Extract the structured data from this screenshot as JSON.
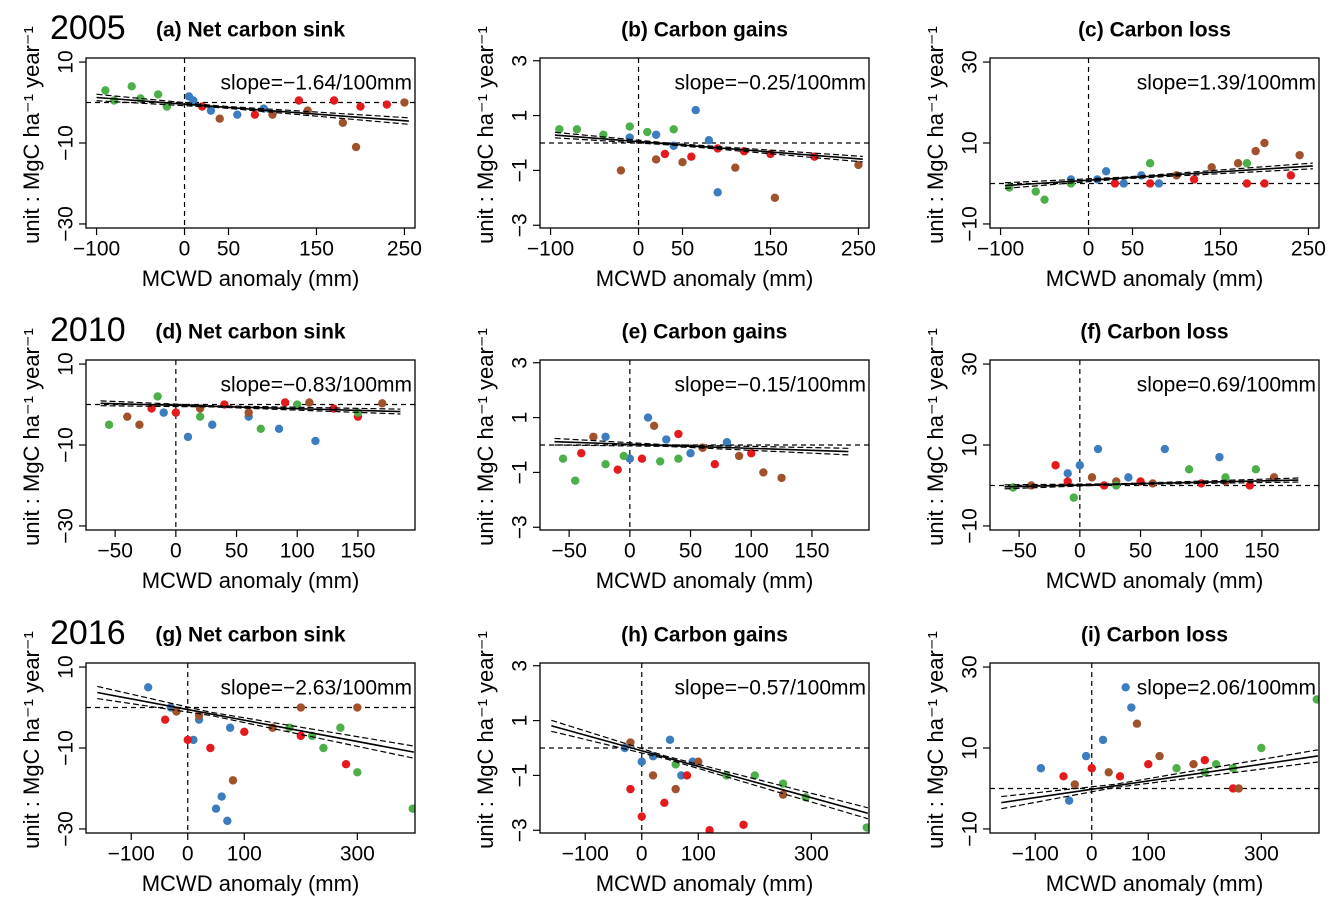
{
  "chart_data": [
    {
      "type": "scatter",
      "year": "2005",
      "title": "(a) Net carbon sink",
      "xlabel": "MCWD anomaly (mm)",
      "ylabel": "unit : MgC ha⁻¹ year⁻¹",
      "annotation": "slope=−1.64/100mm",
      "xlim": [
        -112,
        262
      ],
      "ylim": [
        -31,
        11
      ],
      "xticks": [
        {
          "value": -100,
          "label": "−100"
        },
        0,
        50,
        150,
        250
      ],
      "yticks": [
        {
          "value": -30,
          "label": "−30"
        },
        {
          "value": -10,
          "label": "−10"
        },
        10
      ],
      "series": [
        {
          "color": "#3b7dbf",
          "x": [
            -20,
            10,
            30,
            60,
            90,
            5
          ],
          "values": [
            -1,
            0.5,
            -2,
            -3,
            -1.5,
            1.5
          ]
        },
        {
          "color": "#e41a1c",
          "x": [
            20,
            80,
            130,
            170,
            200,
            230
          ],
          "values": [
            -1,
            -3,
            0.5,
            0.5,
            -1,
            -0.5
          ]
        },
        {
          "color": "#a0522d",
          "x": [
            40,
            100,
            140,
            180,
            195,
            250
          ],
          "values": [
            -4,
            -3,
            -2,
            -5,
            -11,
            0
          ]
        },
        {
          "color": "#4daf4a",
          "x": [
            -90,
            -60,
            -50,
            -30,
            -80,
            -20
          ],
          "values": [
            3,
            4,
            1,
            2,
            0.5,
            -1
          ]
        }
      ],
      "fit": {
        "x": [
          -100,
          40,
          255
        ],
        "y": [
          1.24,
          -1.06,
          -4.58
        ],
        "ci_lower": [
          0.44,
          -1.26,
          -5.38
        ],
        "ci_upper": [
          2.04,
          -0.86,
          -3.78
        ]
      }
    },
    {
      "type": "scatter",
      "title": "(b) Carbon gains",
      "xlabel": "MCWD anomaly (mm)",
      "ylabel": "unit : MgC ha⁻¹ year⁻¹",
      "annotation": "slope=−0.25/100mm",
      "xlim": [
        -112,
        262
      ],
      "ylim": [
        -3.1,
        3.1
      ],
      "xticks": [
        {
          "value": -100,
          "label": "−100"
        },
        0,
        50,
        150,
        250
      ],
      "yticks": [
        {
          "value": -3,
          "label": "−3"
        },
        {
          "value": -1,
          "label": "−1"
        },
        1,
        3
      ],
      "series": [
        {
          "color": "#3b7dbf",
          "x": [
            -10,
            20,
            40,
            65,
            90,
            80
          ],
          "values": [
            0.2,
            0.3,
            -0.1,
            1.2,
            -1.8,
            0.1
          ]
        },
        {
          "color": "#e41a1c",
          "x": [
            30,
            60,
            90,
            120,
            150,
            200
          ],
          "values": [
            -0.4,
            -0.5,
            -0.2,
            -0.3,
            -0.4,
            -0.5
          ]
        },
        {
          "color": "#a0522d",
          "x": [
            -20,
            20,
            50,
            110,
            155,
            250
          ],
          "values": [
            -1,
            -0.6,
            -0.7,
            -0.9,
            -2,
            -0.8
          ]
        },
        {
          "color": "#4daf4a",
          "x": [
            -90,
            -70,
            -40,
            -10,
            10,
            40
          ],
          "values": [
            0.5,
            0.5,
            0.3,
            0.6,
            0.4,
            0.5
          ]
        }
      ],
      "fit": {
        "x": [
          -95,
          40,
          255
        ],
        "y": [
          0.29,
          -0.05,
          -0.59
        ],
        "ci_lower": [
          0.19,
          -0.08,
          -0.69
        ],
        "ci_upper": [
          0.39,
          -0.02,
          -0.49
        ]
      }
    },
    {
      "type": "scatter",
      "title": "(c) Carbon loss",
      "xlabel": "MCWD anomaly (mm)",
      "ylabel": "unit : MgC ha⁻¹ year⁻¹",
      "annotation": "slope=1.39/100mm",
      "xlim": [
        -112,
        262
      ],
      "ylim": [
        -11,
        31
      ],
      "xticks": [
        {
          "value": -100,
          "label": "−100"
        },
        0,
        50,
        150,
        250
      ],
      "yticks": [
        {
          "value": -10,
          "label": "−10"
        },
        10,
        30
      ],
      "series": [
        {
          "color": "#3b7dbf",
          "x": [
            -20,
            20,
            40,
            60,
            80,
            10
          ],
          "values": [
            1,
            3,
            0,
            2,
            0,
            1
          ]
        },
        {
          "color": "#e41a1c",
          "x": [
            30,
            70,
            120,
            180,
            200,
            230
          ],
          "values": [
            0,
            0,
            1,
            0,
            0,
            2
          ]
        },
        {
          "color": "#a0522d",
          "x": [
            100,
            140,
            170,
            190,
            200,
            240
          ],
          "values": [
            2,
            4,
            5,
            8,
            10,
            7
          ]
        },
        {
          "color": "#4daf4a",
          "x": [
            -90,
            -60,
            -50,
            -20,
            70,
            180
          ],
          "values": [
            -1,
            -2,
            -4,
            0,
            5,
            5
          ]
        }
      ],
      "fit": {
        "x": [
          -95,
          40,
          255
        ],
        "y": [
          -0.52,
          1.36,
          4.34
        ],
        "ci_lower": [
          -1.22,
          1.16,
          3.64
        ],
        "ci_upper": [
          0.18,
          1.56,
          5.04
        ]
      }
    },
    {
      "type": "scatter",
      "year": "2010",
      "title": "(d) Net carbon sink",
      "xlabel": "MCWD anomaly (mm)",
      "ylabel": "unit : MgC ha⁻¹ year⁻¹",
      "annotation": "slope=−0.83/100mm",
      "xlim": [
        -74,
        197
      ],
      "ylim": [
        -31,
        11
      ],
      "xticks": [
        {
          "value": -50,
          "label": "−50"
        },
        0,
        50,
        100,
        150
      ],
      "yticks": [
        {
          "value": -30,
          "label": "−30"
        },
        {
          "value": -10,
          "label": "−10"
        },
        10
      ],
      "series": [
        {
          "color": "#3b7dbf",
          "x": [
            -10,
            10,
            30,
            60,
            85,
            115
          ],
          "values": [
            -2,
            -8,
            -5,
            -3,
            -6,
            -9
          ]
        },
        {
          "color": "#e41a1c",
          "x": [
            -20,
            0,
            40,
            90,
            130,
            150
          ],
          "values": [
            -1,
            -2,
            0,
            0.5,
            -1,
            -3
          ]
        },
        {
          "color": "#a0522d",
          "x": [
            -40,
            -30,
            20,
            60,
            110,
            170
          ],
          "values": [
            -3,
            -5,
            -1,
            -2,
            0.5,
            0.3
          ]
        },
        {
          "color": "#4daf4a",
          "x": [
            -55,
            -15,
            20,
            70,
            150,
            100
          ],
          "values": [
            -5,
            2,
            -3,
            -6,
            -2,
            0
          ]
        }
      ],
      "fit": {
        "x": [
          -62,
          30,
          185
        ],
        "y": [
          0.31,
          -0.45,
          -1.74
        ],
        "ci_lower": [
          -0.29,
          -0.6,
          -2.34
        ],
        "ci_upper": [
          0.91,
          -0.3,
          -1.14
        ]
      }
    },
    {
      "type": "scatter",
      "title": "(e) Carbon gains",
      "xlabel": "MCWD anomaly (mm)",
      "ylabel": "unit : MgC ha⁻¹ year⁻¹",
      "annotation": "slope=−0.15/100mm",
      "xlim": [
        -74,
        197
      ],
      "ylim": [
        -3.1,
        3.1
      ],
      "xticks": [
        {
          "value": -50,
          "label": "−50"
        },
        0,
        50,
        100,
        150
      ],
      "yticks": [
        {
          "value": -3,
          "label": "−3"
        },
        {
          "value": -1,
          "label": "−1"
        },
        1,
        3
      ],
      "series": [
        {
          "color": "#3b7dbf",
          "x": [
            -20,
            0,
            15,
            30,
            50,
            80
          ],
          "values": [
            0.3,
            -0.5,
            1,
            0.2,
            -0.3,
            0.1
          ]
        },
        {
          "color": "#e41a1c",
          "x": [
            -40,
            -10,
            10,
            40,
            70,
            100
          ],
          "values": [
            -0.3,
            -0.9,
            -0.5,
            0.4,
            -0.7,
            -0.3
          ]
        },
        {
          "color": "#a0522d",
          "x": [
            -30,
            20,
            60,
            90,
            110,
            125
          ],
          "values": [
            0.3,
            0.7,
            -0.1,
            -0.4,
            -1,
            -1.2
          ]
        },
        {
          "color": "#4daf4a",
          "x": [
            -55,
            -45,
            -20,
            -5,
            25,
            40
          ],
          "values": [
            -0.5,
            -1.3,
            -0.7,
            -0.4,
            -0.6,
            -0.5
          ]
        }
      ],
      "fit": {
        "x": [
          -62,
          30,
          180
        ],
        "y": [
          0.12,
          -0.02,
          -0.24
        ],
        "ci_lower": [
          0,
          -0.05,
          -0.36
        ],
        "ci_upper": [
          0.24,
          0.01,
          -0.12
        ]
      }
    },
    {
      "type": "scatter",
      "title": "(f) Carbon loss",
      "xlabel": "MCWD anomaly (mm)",
      "ylabel": "unit : MgC ha⁻¹ year⁻¹",
      "annotation": "slope=0.69/100mm",
      "xlim": [
        -74,
        197
      ],
      "ylim": [
        -11,
        31
      ],
      "xticks": [
        {
          "value": -50,
          "label": "−50"
        },
        0,
        50,
        100,
        150
      ],
      "yticks": [
        {
          "value": -10,
          "label": "−10"
        },
        10,
        30
      ],
      "series": [
        {
          "color": "#3b7dbf",
          "x": [
            -10,
            0,
            15,
            40,
            70,
            115
          ],
          "values": [
            3,
            5,
            9,
            2,
            9,
            7
          ]
        },
        {
          "color": "#e41a1c",
          "x": [
            -20,
            -10,
            20,
            50,
            100,
            140
          ],
          "values": [
            5,
            1,
            0,
            1,
            0.5,
            0
          ]
        },
        {
          "color": "#a0522d",
          "x": [
            -40,
            10,
            30,
            60,
            120,
            160
          ],
          "values": [
            0,
            2,
            1,
            0.5,
            1,
            2
          ]
        },
        {
          "color": "#4daf4a",
          "x": [
            -55,
            -5,
            30,
            90,
            120,
            145
          ],
          "values": [
            -0.5,
            -3,
            0,
            4,
            2,
            4
          ]
        }
      ],
      "fit": {
        "x": [
          -62,
          30,
          180
        ],
        "y": [
          -0.33,
          0.31,
          1.34
        ],
        "ci_lower": [
          -0.83,
          0.21,
          0.84
        ],
        "ci_upper": [
          0.17,
          0.41,
          1.84
        ]
      }
    },
    {
      "type": "scatter",
      "year": "2016",
      "title": "(g) Net carbon sink",
      "xlabel": "MCWD anomaly (mm)",
      "ylabel": "unit : MgC ha⁻¹ year⁻¹",
      "annotation": "slope=−2.63/100mm",
      "xlim": [
        -180,
        402
      ],
      "ylim": [
        -31,
        11
      ],
      "xticks": [
        {
          "value": -100,
          "label": "−100"
        },
        0,
        100,
        300
      ],
      "yticks": [
        {
          "value": -30,
          "label": "−30"
        },
        {
          "value": -10,
          "label": "−10"
        },
        10
      ],
      "series": [
        {
          "color": "#3b7dbf",
          "x": [
            -70,
            -30,
            20,
            50,
            70,
            60,
            10,
            75
          ],
          "values": [
            5,
            0,
            -3,
            -25,
            -28,
            -22,
            -8,
            -5
          ]
        },
        {
          "color": "#e41a1c",
          "x": [
            -40,
            0,
            40,
            100,
            200,
            280
          ],
          "values": [
            -3,
            -8,
            -10,
            -6,
            -7,
            -14
          ]
        },
        {
          "color": "#a0522d",
          "x": [
            -20,
            20,
            80,
            150,
            200,
            300
          ],
          "values": [
            -1,
            -2,
            -18,
            -5,
            0,
            0
          ]
        },
        {
          "color": "#4daf4a",
          "x": [
            180,
            220,
            240,
            270,
            300,
            398
          ],
          "values": [
            -5,
            -7,
            -10,
            -5,
            -16,
            -25
          ]
        }
      ],
      "fit": {
        "x": [
          -160,
          40,
          400
        ],
        "y": [
          3.71,
          -1.55,
          -11.02
        ],
        "ci_lower": [
          2.21,
          -1.95,
          -12.52
        ],
        "ci_upper": [
          5.21,
          -1.15,
          -9.52
        ]
      }
    },
    {
      "type": "scatter",
      "title": "(h) Carbon gains",
      "xlabel": "MCWD anomaly (mm)",
      "ylabel": "unit : MgC ha⁻¹ year⁻¹",
      "annotation": "slope=−0.57/100mm",
      "xlim": [
        -180,
        402
      ],
      "ylim": [
        -3.1,
        3.1
      ],
      "xticks": [
        {
          "value": -100,
          "label": "−100"
        },
        0,
        100,
        300
      ],
      "yticks": [
        {
          "value": -3,
          "label": "−3"
        },
        {
          "value": -1,
          "label": "−1"
        },
        1,
        3
      ],
      "series": [
        {
          "color": "#3b7dbf",
          "x": [
            -30,
            0,
            20,
            50,
            70,
            90
          ],
          "values": [
            0,
            -0.5,
            -0.3,
            0.3,
            -1,
            -0.5
          ]
        },
        {
          "color": "#e41a1c",
          "x": [
            -20,
            0,
            40,
            80,
            120,
            180
          ],
          "values": [
            -1.5,
            -2.5,
            -2,
            -1,
            -3,
            -2.8
          ]
        },
        {
          "color": "#a0522d",
          "x": [
            -20,
            20,
            60,
            100,
            150,
            250
          ],
          "values": [
            0.2,
            -1,
            -1.5,
            -0.5,
            -1,
            -1.7
          ]
        },
        {
          "color": "#4daf4a",
          "x": [
            60,
            150,
            200,
            250,
            290,
            398
          ],
          "values": [
            -0.6,
            -1,
            -1,
            -1.3,
            -1.8,
            -2.9
          ]
        }
      ],
      "fit": {
        "x": [
          -160,
          40,
          400
        ],
        "y": [
          0.81,
          -0.33,
          -2.38
        ],
        "ci_lower": [
          0.61,
          -0.38,
          -2.58
        ],
        "ci_upper": [
          1.01,
          -0.28,
          -2.18
        ]
      }
    },
    {
      "type": "scatter",
      "title": "(i) Carbon loss",
      "xlabel": "MCWD anomaly (mm)",
      "ylabel": "unit : MgC ha⁻¹ year⁻¹",
      "annotation": "slope=2.06/100mm",
      "xlim": [
        -180,
        402
      ],
      "ylim": [
        -11,
        31
      ],
      "xticks": [
        {
          "value": -100,
          "label": "−100"
        },
        0,
        100,
        300
      ],
      "yticks": [
        {
          "value": -10,
          "label": "−10"
        },
        10,
        30
      ],
      "series": [
        {
          "color": "#3b7dbf",
          "x": [
            -90,
            -40,
            -10,
            20,
            60,
            70
          ],
          "values": [
            5,
            -3,
            8,
            12,
            25,
            20
          ]
        },
        {
          "color": "#e41a1c",
          "x": [
            -50,
            0,
            50,
            100,
            200,
            250
          ],
          "values": [
            3,
            5,
            3,
            6,
            7,
            0
          ]
        },
        {
          "color": "#a0522d",
          "x": [
            -30,
            30,
            80,
            120,
            180,
            260
          ],
          "values": [
            1,
            4,
            16,
            8,
            6,
            0
          ]
        },
        {
          "color": "#4daf4a",
          "x": [
            150,
            200,
            220,
            250,
            300,
            398
          ],
          "values": [
            5,
            4,
            6,
            5,
            10,
            22
          ]
        }
      ],
      "fit": {
        "x": [
          -160,
          40,
          400
        ],
        "y": [
          -3.5,
          0.62,
          8.04
        ],
        "ci_lower": [
          -5,
          0.22,
          6.54
        ],
        "ci_upper": [
          -2,
          1.02,
          9.54
        ]
      }
    }
  ]
}
